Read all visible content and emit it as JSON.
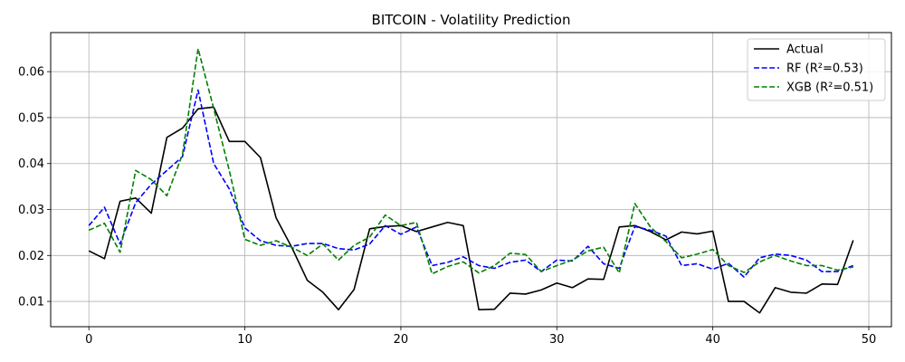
{
  "chart_data": {
    "type": "line",
    "title": "BITCOIN - Volatility Prediction",
    "xlabel": "",
    "ylabel": "",
    "xlim": [
      -2.45,
      51.45
    ],
    "ylim": [
      0.0045,
      0.0685
    ],
    "xticks": [
      0,
      10,
      20,
      30,
      40,
      50
    ],
    "yticks": [
      0.01,
      0.02,
      0.03,
      0.04,
      0.05,
      0.06
    ],
    "ytick_labels": [
      "0.01",
      "0.02",
      "0.03",
      "0.04",
      "0.05",
      "0.06"
    ],
    "grid": true,
    "legend_position": "top-right",
    "x": [
      0,
      1,
      2,
      3,
      4,
      5,
      6,
      7,
      8,
      9,
      10,
      11,
      12,
      13,
      14,
      15,
      16,
      17,
      18,
      19,
      20,
      21,
      22,
      23,
      24,
      25,
      26,
      27,
      28,
      29,
      30,
      31,
      32,
      33,
      34,
      35,
      36,
      37,
      38,
      39,
      40,
      41,
      42,
      43,
      44,
      45,
      46,
      47,
      48,
      49
    ],
    "series": [
      {
        "name": "Actual",
        "color": "#000000",
        "dash": "solid",
        "values": [
          0.021,
          0.0193,
          0.0318,
          0.0325,
          0.0292,
          0.0457,
          0.0477,
          0.0519,
          0.0523,
          0.0448,
          0.0448,
          0.0413,
          0.0282,
          0.0218,
          0.0146,
          0.012,
          0.0082,
          0.0126,
          0.0258,
          0.0263,
          0.0265,
          0.0252,
          0.0262,
          0.0272,
          0.0265,
          0.0082,
          0.0083,
          0.0118,
          0.0116,
          0.0125,
          0.014,
          0.013,
          0.0149,
          0.0148,
          0.0262,
          0.0265,
          0.0252,
          0.0234,
          0.0251,
          0.0247,
          0.0253,
          0.01,
          0.01,
          0.0075,
          0.013,
          0.012,
          0.0118,
          0.0138,
          0.0137,
          0.0233
        ]
      },
      {
        "name": "RF (R²=0.53)",
        "color": "#0000ff",
        "dash": "dashed",
        "values": [
          0.0265,
          0.0305,
          0.0225,
          0.0315,
          0.0355,
          0.0385,
          0.0415,
          0.056,
          0.04,
          0.0345,
          0.026,
          0.0232,
          0.0222,
          0.022,
          0.0226,
          0.0226,
          0.0215,
          0.0212,
          0.0225,
          0.0265,
          0.0246,
          0.0262,
          0.0178,
          0.0185,
          0.0197,
          0.0178,
          0.0172,
          0.0185,
          0.019,
          0.0165,
          0.019,
          0.0188,
          0.022,
          0.0182,
          0.0172,
          0.0263,
          0.0255,
          0.0242,
          0.0178,
          0.0182,
          0.017,
          0.0183,
          0.0153,
          0.0195,
          0.0203,
          0.02,
          0.019,
          0.0165,
          0.0165,
          0.0178
        ]
      },
      {
        "name": "XGB (R²=0.51)",
        "color": "#008000",
        "dash": "dashed",
        "values": [
          0.0255,
          0.027,
          0.0207,
          0.0385,
          0.0365,
          0.033,
          0.042,
          0.065,
          0.052,
          0.0385,
          0.0235,
          0.0222,
          0.0232,
          0.0218,
          0.02,
          0.0225,
          0.019,
          0.0222,
          0.024,
          0.0288,
          0.0265,
          0.0272,
          0.016,
          0.0176,
          0.0186,
          0.0162,
          0.0178,
          0.0205,
          0.0202,
          0.0165,
          0.0178,
          0.019,
          0.021,
          0.0218,
          0.0162,
          0.0313,
          0.0262,
          0.023,
          0.0195,
          0.0203,
          0.0213,
          0.0178,
          0.0163,
          0.0186,
          0.02,
          0.0188,
          0.0178,
          0.0178,
          0.0168,
          0.0175
        ]
      }
    ]
  }
}
